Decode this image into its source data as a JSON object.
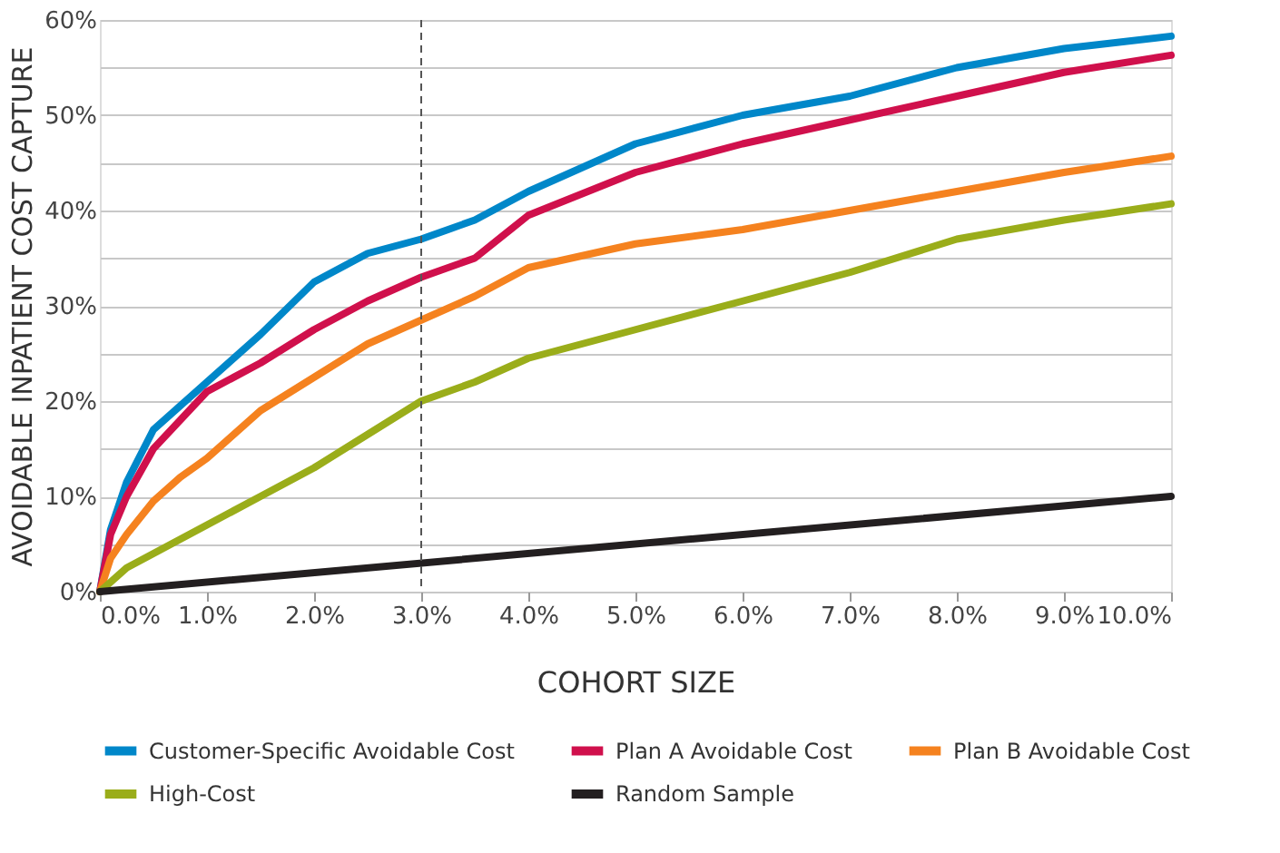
{
  "chart_data": {
    "type": "line",
    "xlabel": "COHORT SIZE",
    "ylabel": "AVOIDABLE INPATIENT COST CAPTURE",
    "xlim": [
      0,
      10
    ],
    "ylim": [
      0,
      60
    ],
    "xticks": [
      {
        "value": 0,
        "label": "0.0%"
      },
      {
        "value": 1,
        "label": "1.0%"
      },
      {
        "value": 2,
        "label": "2.0%"
      },
      {
        "value": 3,
        "label": "3.0%"
      },
      {
        "value": 4,
        "label": "4.0%"
      },
      {
        "value": 5,
        "label": "5.0%"
      },
      {
        "value": 6,
        "label": "6.0%"
      },
      {
        "value": 7,
        "label": "7.0%"
      },
      {
        "value": 8,
        "label": "8.0%"
      },
      {
        "value": 9,
        "label": "9.0%"
      },
      {
        "value": 10,
        "label": "10.0%"
      }
    ],
    "yticks": [
      {
        "value": 0,
        "label": "0%"
      },
      {
        "value": 5,
        "label": null
      },
      {
        "value": 10,
        "label": "10%"
      },
      {
        "value": 15,
        "label": null
      },
      {
        "value": 20,
        "label": "20%"
      },
      {
        "value": 25,
        "label": null
      },
      {
        "value": 30,
        "label": "30%"
      },
      {
        "value": 35,
        "label": null
      },
      {
        "value": 40,
        "label": "40%"
      },
      {
        "value": 45,
        "label": null
      },
      {
        "value": 50,
        "label": "50%"
      },
      {
        "value": 55,
        "label": null
      },
      {
        "value": 60,
        "label": "60%"
      }
    ],
    "grid": "y",
    "legend": "bottom",
    "line_style": "solid",
    "marker": "none",
    "ref_lines": [
      {
        "axis": "x",
        "value": 3,
        "color": "#555555",
        "line_style": "dashed"
      }
    ],
    "x": [
      0,
      0.1,
      0.25,
      0.5,
      0.75,
      1,
      1.5,
      2,
      2.5,
      3,
      3.5,
      4,
      5,
      6,
      7,
      8,
      9,
      10
    ],
    "series": [
      {
        "name": "Customer-Specific Avoidable Cost",
        "color": "#0087c9",
        "values": [
          0,
          6.5,
          11.5,
          17,
          19.5,
          22,
          27,
          32.5,
          35.5,
          37,
          39,
          42,
          47,
          50,
          52,
          55,
          57,
          58.3
        ]
      },
      {
        "name": "Plan A Avoidable Cost",
        "color": "#d0104c",
        "values": [
          0,
          6,
          10,
          15,
          18,
          21,
          24,
          27.5,
          30.5,
          33,
          35,
          39.5,
          44,
          47,
          49.5,
          52,
          54.5,
          56.3
        ]
      },
      {
        "name": "Plan B Avoidable Cost",
        "color": "#f5821f",
        "values": [
          0,
          3.5,
          6,
          9.5,
          12,
          14,
          19,
          22.5,
          26,
          28.5,
          31,
          34,
          36.5,
          38,
          40,
          42,
          44,
          45.7
        ]
      },
      {
        "name": "High-Cost",
        "color": "#9aad1a",
        "values": [
          0,
          1,
          2.5,
          4,
          5.5,
          7,
          10,
          13,
          16.5,
          20,
          22,
          24.5,
          27.5,
          30.5,
          33.5,
          37,
          39,
          40.7
        ]
      },
      {
        "name": "Random Sample",
        "color": "#231f20",
        "x": [
          0,
          10
        ],
        "values": [
          0,
          10
        ]
      }
    ]
  }
}
